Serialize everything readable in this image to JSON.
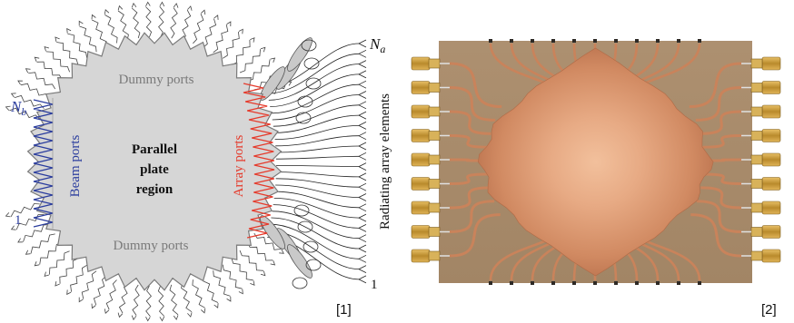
{
  "left_panel": {
    "region_label_lines": [
      "Parallel",
      "plate",
      "region"
    ],
    "dummy_ports_top": "Dummy ports",
    "dummy_ports_bottom": "Dummy ports",
    "beam_ports": "Beam ports",
    "array_ports": "Array ports",
    "radiating_elements": "Radiating array elements",
    "nb_label": "N",
    "nb_sub": "b",
    "na_label": "N",
    "na_sub": "a",
    "beam_index_one": "1",
    "array_index_one": "1",
    "caption": "[1]"
  },
  "right_panel": {
    "caption": "[2]"
  },
  "colors": {
    "region_fill": "#d6d6d6",
    "region_stroke": "#7a7a7a",
    "beam_blue": "#2b3d9e",
    "array_red": "#e53b2c",
    "dummy_text": "#777777",
    "board": "#a98b69",
    "copper": "#c9835b",
    "connector_gold": "#c99a3c"
  }
}
